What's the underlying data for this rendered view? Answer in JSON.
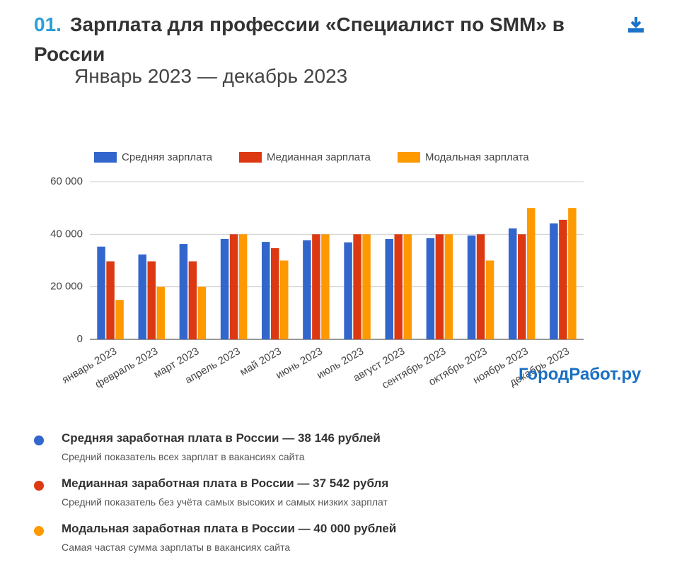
{
  "header": {
    "number": "01.",
    "title": "Зарплата для профессии «Специалист по SMM» в России",
    "subtitle": "Январь 2023 — декабрь 2023"
  },
  "chart_data": {
    "type": "bar",
    "categories": [
      "январь 2023",
      "февраль 2023",
      "март 2023",
      "апрель 2023",
      "май 2023",
      "июнь 2023",
      "июль 2023",
      "август 2023",
      "сентябрь 2023",
      "октябрь 2023",
      "ноябрь 2023",
      "декабрь 2023"
    ],
    "series": [
      {
        "name": "Средняя зарплата",
        "color": "#3366cc",
        "values": [
          35300,
          32300,
          36300,
          38200,
          37100,
          37700,
          36900,
          38200,
          38500,
          39500,
          42200,
          44100
        ]
      },
      {
        "name": "Медианная зарплата",
        "color": "#dc3912",
        "values": [
          29700,
          29700,
          29700,
          40000,
          34700,
          40000,
          40000,
          40000,
          40000,
          40000,
          40000,
          45500
        ]
      },
      {
        "name": "Модальная зарплата",
        "color": "#ff9900",
        "values": [
          15000,
          20000,
          20000,
          40000,
          30000,
          40000,
          40000,
          40000,
          40000,
          30000,
          50000,
          50000
        ]
      }
    ],
    "ylim": [
      0,
      60000
    ],
    "yticks": [
      0,
      {
        "value": 20000,
        "label": "20 000"
      },
      {
        "value": 40000,
        "label": "40 000"
      },
      {
        "value": 60000,
        "label": "60 000"
      }
    ],
    "grid": true,
    "legend": "top"
  },
  "watermark": "ГородРабот.ру",
  "summary": [
    {
      "title": "Средняя заработная плата в России — 38 146 рублей",
      "description": "Средний показатель всех зарплат в вакансиях сайта",
      "color": "#3366cc"
    },
    {
      "title": "Медианная заработная плата в России — 37 542 рубля",
      "description": "Средний показатель без учёта самых высоких и самых низких зарплат",
      "color": "#dc3912"
    },
    {
      "title": "Модальная заработная плата в России — 40 000 рублей",
      "description": "Самая частая сумма зарплаты в вакансиях сайта",
      "color": "#ff9900"
    }
  ]
}
